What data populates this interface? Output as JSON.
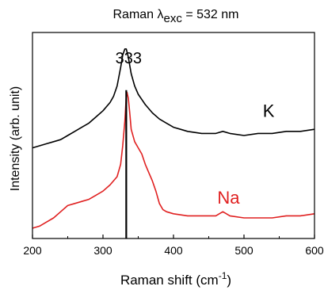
{
  "chart_data": {
    "type": "line",
    "title_prefix": "Raman λ",
    "title_sub": "exc",
    "title_suffix": " = 532 nm",
    "xlabel_main": "Raman shift (cm",
    "xlabel_sup": "-1",
    "xlabel_close": ")",
    "ylabel": "Intensity (arb. unit)",
    "xlim": [
      200,
      600
    ],
    "ylim": [
      0,
      100
    ],
    "y_ticks_shown": false,
    "grid": false,
    "x_ticks": [
      "200",
      "300",
      "400",
      "500",
      "600"
    ],
    "peak_annotation": {
      "text": "333",
      "x": 333
    },
    "reference_line_x": 333,
    "series": [
      {
        "name": "K",
        "color": "#000000",
        "points": [
          [
            200,
            44
          ],
          [
            210,
            45
          ],
          [
            220,
            46
          ],
          [
            230,
            47
          ],
          [
            240,
            48
          ],
          [
            250,
            50
          ],
          [
            260,
            52
          ],
          [
            270,
            54
          ],
          [
            280,
            56
          ],
          [
            290,
            59
          ],
          [
            300,
            62
          ],
          [
            310,
            66
          ],
          [
            315,
            69
          ],
          [
            320,
            74
          ],
          [
            325,
            83
          ],
          [
            328,
            89
          ],
          [
            331,
            92
          ],
          [
            333,
            92
          ],
          [
            336,
            88
          ],
          [
            340,
            80
          ],
          [
            345,
            74
          ],
          [
            350,
            70
          ],
          [
            360,
            65
          ],
          [
            370,
            61
          ],
          [
            380,
            58
          ],
          [
            390,
            56
          ],
          [
            400,
            54
          ],
          [
            410,
            53
          ],
          [
            420,
            52
          ],
          [
            440,
            51
          ],
          [
            460,
            51
          ],
          [
            470,
            52
          ],
          [
            480,
            51
          ],
          [
            500,
            50
          ],
          [
            520,
            51
          ],
          [
            540,
            51
          ],
          [
            560,
            52
          ],
          [
            580,
            52
          ],
          [
            600,
            53
          ]
        ]
      },
      {
        "name": "Na",
        "color": "#e02020",
        "points": [
          [
            200,
            5
          ],
          [
            210,
            6
          ],
          [
            220,
            8
          ],
          [
            230,
            10
          ],
          [
            240,
            13
          ],
          [
            250,
            16
          ],
          [
            260,
            17
          ],
          [
            270,
            18
          ],
          [
            280,
            19
          ],
          [
            290,
            21
          ],
          [
            300,
            23
          ],
          [
            310,
            26
          ],
          [
            320,
            30
          ],
          [
            325,
            36
          ],
          [
            328,
            45
          ],
          [
            331,
            57
          ],
          [
            333,
            69
          ],
          [
            334,
            71
          ],
          [
            336,
            68
          ],
          [
            338,
            61
          ],
          [
            340,
            53
          ],
          [
            345,
            47
          ],
          [
            350,
            44
          ],
          [
            355,
            41
          ],
          [
            360,
            36
          ],
          [
            365,
            32
          ],
          [
            370,
            28
          ],
          [
            375,
            23
          ],
          [
            380,
            17
          ],
          [
            385,
            14
          ],
          [
            390,
            13
          ],
          [
            400,
            12
          ],
          [
            420,
            11
          ],
          [
            440,
            11
          ],
          [
            460,
            11
          ],
          [
            470,
            13
          ],
          [
            475,
            12
          ],
          [
            480,
            11
          ],
          [
            500,
            10
          ],
          [
            520,
            10
          ],
          [
            540,
            10
          ],
          [
            560,
            11
          ],
          [
            580,
            11
          ],
          [
            600,
            12
          ]
        ]
      }
    ]
  }
}
